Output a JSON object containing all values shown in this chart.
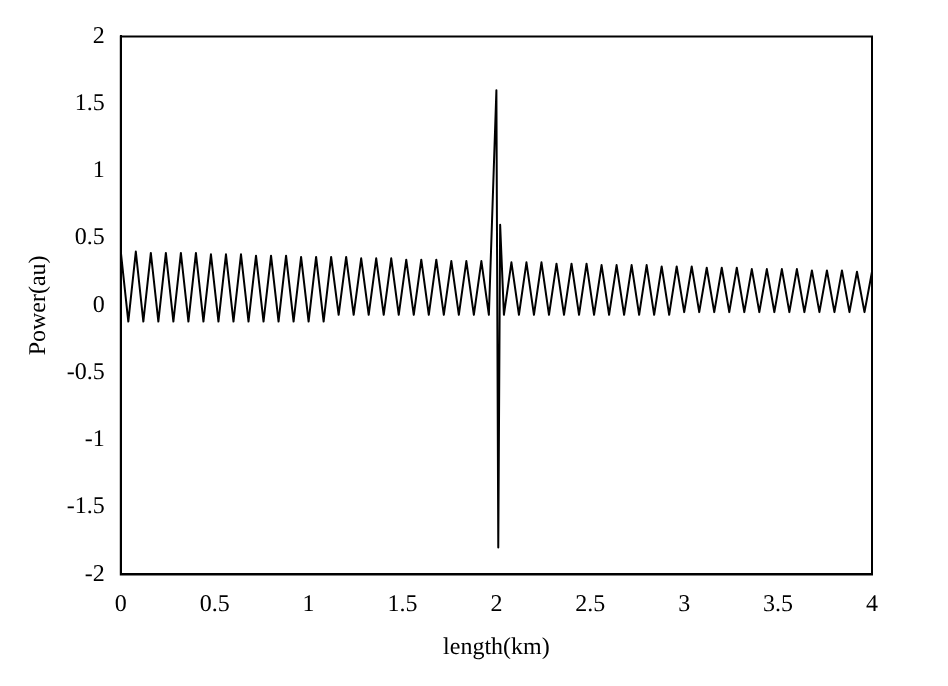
{
  "chart_data": {
    "type": "line",
    "xlabel": "length(km)",
    "ylabel": "Power(au)",
    "xlim": [
      0,
      4
    ],
    "xticks": [
      0,
      0.5,
      1,
      1.5,
      2,
      2.5,
      3,
      3.5,
      4
    ],
    "ylim": [
      -2,
      2
    ],
    "yticks": [
      -2,
      -1.5,
      -1,
      -0.5,
      0,
      0.5,
      1,
      1.5,
      2
    ],
    "grid": false,
    "legend": false,
    "marker": "none",
    "line_style": "solid",
    "series": [
      {
        "color": "#000000",
        "x": [
          0,
          0.04,
          0.08,
          0.12,
          0.16,
          0.2,
          0.24,
          0.28,
          0.32,
          0.36,
          0.4,
          0.44,
          0.48,
          0.52,
          0.56,
          0.6,
          0.64,
          0.68,
          0.72,
          0.76,
          0.8,
          0.84,
          0.88,
          0.92,
          0.96,
          1,
          1.04,
          1.08,
          1.12,
          1.16,
          1.2,
          1.24,
          1.28,
          1.32,
          1.36,
          1.4,
          1.44,
          1.48,
          1.52,
          1.56,
          1.6,
          1.64,
          1.68,
          1.72,
          1.76,
          1.8,
          1.84,
          1.88,
          1.92,
          1.96,
          2,
          2.01,
          2.02,
          2.04,
          2.08,
          2.12,
          2.16,
          2.2,
          2.24,
          2.28,
          2.32,
          2.36,
          2.4,
          2.44,
          2.48,
          2.52,
          2.56,
          2.6,
          2.64,
          2.68,
          2.72,
          2.76,
          2.8,
          2.84,
          2.88,
          2.92,
          2.96,
          3,
          3.04,
          3.08,
          3.12,
          3.16,
          3.2,
          3.24,
          3.28,
          3.32,
          3.36,
          3.4,
          3.44,
          3.48,
          3.52,
          3.56,
          3.6,
          3.64,
          3.68,
          3.72,
          3.76,
          3.8,
          3.84,
          3.88,
          3.92,
          3.96,
          4
        ],
        "values": [
          0.4,
          -0.12,
          0.4,
          -0.12,
          0.39,
          -0.12,
          0.39,
          -0.12,
          0.39,
          -0.12,
          0.39,
          -0.12,
          0.38,
          -0.12,
          0.38,
          -0.12,
          0.38,
          -0.12,
          0.37,
          -0.12,
          0.37,
          -0.12,
          0.37,
          -0.12,
          0.36,
          -0.12,
          0.36,
          -0.12,
          0.36,
          -0.07,
          0.36,
          -0.07,
          0.35,
          -0.07,
          0.35,
          -0.07,
          0.35,
          -0.07,
          0.34,
          -0.07,
          0.34,
          -0.07,
          0.34,
          -0.07,
          0.33,
          -0.07,
          0.33,
          -0.07,
          0.33,
          -0.07,
          1.6,
          -1.8,
          0.6,
          -0.07,
          0.32,
          -0.07,
          0.32,
          -0.07,
          0.32,
          -0.07,
          0.31,
          -0.07,
          0.31,
          -0.07,
          0.31,
          -0.07,
          0.3,
          -0.07,
          0.3,
          -0.07,
          0.3,
          -0.07,
          0.3,
          -0.07,
          0.29,
          -0.07,
          0.29,
          -0.05,
          0.29,
          -0.05,
          0.28,
          -0.05,
          0.28,
          -0.05,
          0.28,
          -0.05,
          0.27,
          -0.05,
          0.27,
          -0.05,
          0.27,
          -0.05,
          0.27,
          -0.05,
          0.26,
          -0.05,
          0.26,
          -0.05,
          0.26,
          -0.05,
          0.25,
          -0.05,
          0.25
        ]
      }
    ]
  }
}
